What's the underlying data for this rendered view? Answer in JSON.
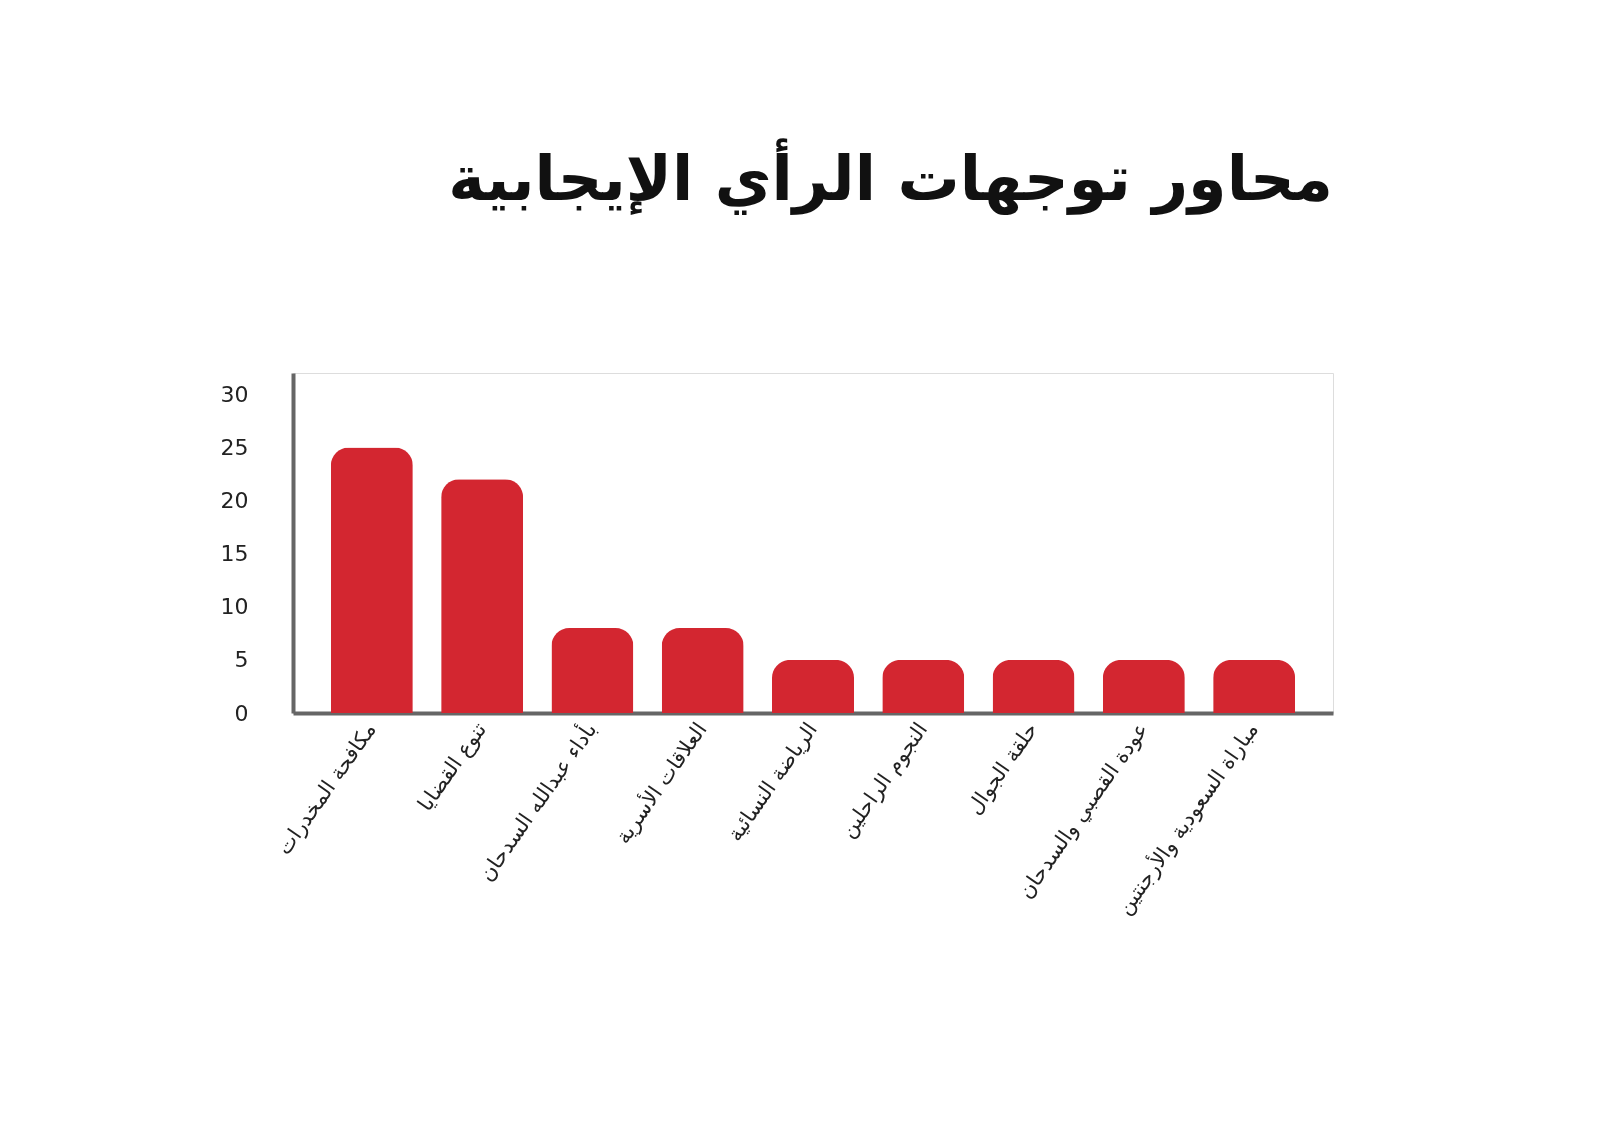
{
  "chart_data": {
    "type": "bar",
    "title": "محاور توجهات الرأي الإيجابية",
    "categories": [
      "مكافحة المخدرات",
      "تنوع القضايا",
      "بأداء عبدالله السدحان",
      "العلاقات الأسرية",
      "الرياضة النسائية",
      "النجوم الراحلين",
      "حلقة الجوال",
      "عودة القصبي والسدحان",
      "مباراة السعودية والأرجنتين"
    ],
    "values": [
      25,
      22,
      8,
      8,
      5,
      5,
      5,
      5,
      5
    ],
    "color": "#d32630",
    "ylim": [
      0,
      32
    ],
    "yticks": [
      0,
      5,
      10,
      15,
      20,
      25,
      30
    ],
    "grid": false
  }
}
